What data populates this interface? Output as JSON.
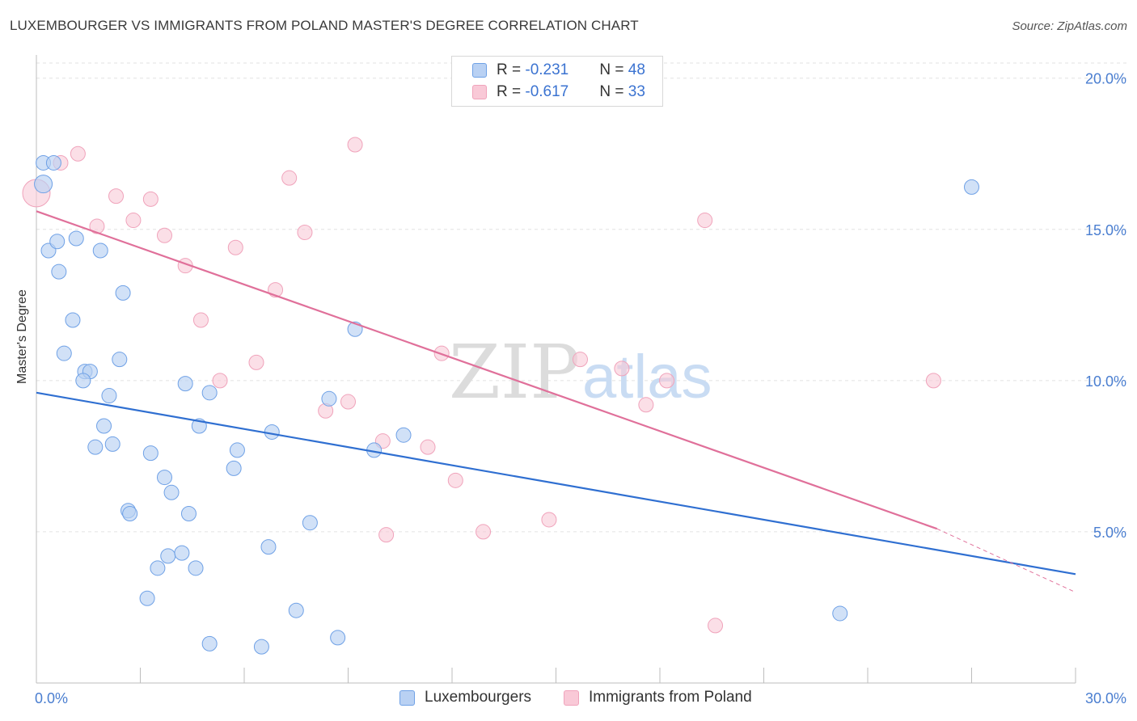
{
  "title": "LUXEMBOURGER VS IMMIGRANTS FROM POLAND MASTER'S DEGREE CORRELATION CHART",
  "source": "Source: ZipAtlas.com",
  "watermark": {
    "zip": "ZIP",
    "atlas": "atlas"
  },
  "legend": {
    "rows": [
      {
        "r_label": "R = ",
        "r_value": "-0.231",
        "n_label": "N = ",
        "n_value": "48"
      },
      {
        "r_label": "R = ",
        "r_value": "-0.617",
        "n_label": "N = ",
        "n_value": "33"
      }
    ]
  },
  "bottom_legend": {
    "series1": "Luxembourgers",
    "series2": "Immigrants from Poland"
  },
  "colors": {
    "blue": "#6fa1e6",
    "blue_fill": "#b9d1f3",
    "blue_line": "#2f6fd1",
    "pink": "#f0a3bb",
    "pink_fill": "#f9c9d7",
    "pink_line": "#e0709a",
    "tick": "#4a7ed0"
  },
  "chart_data": {
    "type": "scatter",
    "title": "LUXEMBOURGER VS IMMIGRANTS FROM POLAND MASTER'S DEGREE CORRELATION CHART",
    "xlabel": "",
    "ylabel": "Master's Degree",
    "xlim": [
      0,
      30
    ],
    "ylim": [
      0,
      20
    ],
    "x_ticks": [
      {
        "value": 0,
        "label": "0.0%"
      },
      {
        "value": 30,
        "label": "30.0%"
      }
    ],
    "y_ticks": [
      {
        "value": 5,
        "label": "5.0%"
      },
      {
        "value": 10,
        "label": "10.0%"
      },
      {
        "value": 15,
        "label": "15.0%"
      },
      {
        "value": 20,
        "label": "20.0%"
      }
    ],
    "grid": true,
    "legend_position": "top-center",
    "series": [
      {
        "name": "Luxembourgers",
        "points": [
          [
            0.2,
            16.5
          ],
          [
            0.2,
            17.2
          ],
          [
            0.5,
            17.2
          ],
          [
            0.35,
            14.3
          ],
          [
            0.6,
            14.6
          ],
          [
            1.15,
            14.7
          ],
          [
            0.65,
            13.6
          ],
          [
            1.85,
            14.3
          ],
          [
            2.5,
            12.9
          ],
          [
            1.05,
            12.0
          ],
          [
            0.8,
            10.9
          ],
          [
            2.4,
            10.7
          ],
          [
            1.4,
            10.3
          ],
          [
            1.55,
            10.3
          ],
          [
            1.35,
            10.0
          ],
          [
            4.3,
            9.9
          ],
          [
            5.0,
            9.6
          ],
          [
            2.1,
            9.5
          ],
          [
            8.45,
            9.4
          ],
          [
            1.95,
            8.5
          ],
          [
            4.7,
            8.5
          ],
          [
            6.8,
            8.3
          ],
          [
            10.6,
            8.2
          ],
          [
            1.7,
            7.8
          ],
          [
            2.2,
            7.9
          ],
          [
            3.3,
            7.6
          ],
          [
            5.8,
            7.7
          ],
          [
            9.75,
            7.7
          ],
          [
            5.7,
            7.1
          ],
          [
            3.7,
            6.8
          ],
          [
            3.9,
            6.3
          ],
          [
            2.65,
            5.7
          ],
          [
            2.7,
            5.6
          ],
          [
            4.4,
            5.6
          ],
          [
            7.9,
            5.3
          ],
          [
            6.7,
            4.5
          ],
          [
            3.8,
            4.2
          ],
          [
            4.2,
            4.3
          ],
          [
            3.5,
            3.8
          ],
          [
            4.6,
            3.8
          ],
          [
            3.2,
            2.8
          ],
          [
            7.5,
            2.4
          ],
          [
            23.2,
            2.3
          ],
          [
            5.0,
            1.3
          ],
          [
            6.5,
            1.2
          ],
          [
            8.7,
            1.5
          ],
          [
            9.2,
            11.7
          ],
          [
            27.0,
            16.4
          ]
        ],
        "trend": {
          "x": [
            0,
            30
          ],
          "y": [
            9.6,
            3.6
          ]
        }
      },
      {
        "name": "Immigrants from Poland",
        "points": [
          [
            0.0,
            16.2
          ],
          [
            0.7,
            17.2
          ],
          [
            1.2,
            17.5
          ],
          [
            2.3,
            16.1
          ],
          [
            3.3,
            16.0
          ],
          [
            1.75,
            15.1
          ],
          [
            2.8,
            15.3
          ],
          [
            3.7,
            14.8
          ],
          [
            9.2,
            17.8
          ],
          [
            7.3,
            16.7
          ],
          [
            7.75,
            14.9
          ],
          [
            5.75,
            14.4
          ],
          [
            4.3,
            13.8
          ],
          [
            6.9,
            13.0
          ],
          [
            4.75,
            12.0
          ],
          [
            6.35,
            10.6
          ],
          [
            11.7,
            10.9
          ],
          [
            15.7,
            10.7
          ],
          [
            16.9,
            10.4
          ],
          [
            18.2,
            10.0
          ],
          [
            17.6,
            9.2
          ],
          [
            25.9,
            10.0
          ],
          [
            5.3,
            10.0
          ],
          [
            8.35,
            9.0
          ],
          [
            9.0,
            9.3
          ],
          [
            19.3,
            15.3
          ],
          [
            10.0,
            8.0
          ],
          [
            11.3,
            7.8
          ],
          [
            12.1,
            6.7
          ],
          [
            14.8,
            5.4
          ],
          [
            10.1,
            4.9
          ],
          [
            12.9,
            5.0
          ],
          [
            19.6,
            1.9
          ]
        ],
        "trend": {
          "x": [
            0,
            26.0
          ],
          "y": [
            15.6,
            5.1
          ]
        },
        "trend_dashed": {
          "x": [
            26.0,
            30
          ],
          "y": [
            5.1,
            3.0
          ]
        }
      }
    ]
  }
}
